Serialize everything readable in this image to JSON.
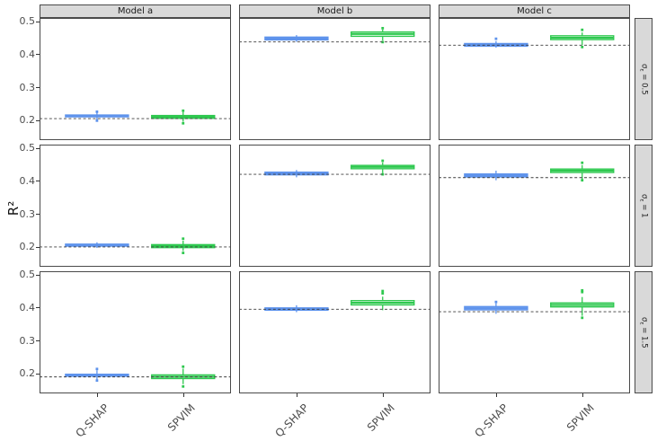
{
  "figure": {
    "ylabel": "R²"
  },
  "chart_data": {
    "type": "boxplot",
    "title": "",
    "xlabel": "",
    "ylabel": "R²",
    "facet_columns": [
      "Model a",
      "Model b",
      "Model c"
    ],
    "facet_rows": [
      {
        "label": "σ_ε = 0.5",
        "base": "σ",
        "sub": "ε",
        "rest": " = 0.5"
      },
      {
        "label": "σ_ε = 1",
        "base": "σ",
        "sub": "ε",
        "rest": " = 1"
      },
      {
        "label": "σ_ε = 1.5",
        "base": "σ",
        "sub": "ε",
        "rest": " = 1.5"
      }
    ],
    "x_categories": [
      "Q-SHAP",
      "SPVIM"
    ],
    "y_ticks": [
      0.5,
      0.4,
      0.3,
      0.2
    ],
    "ylim": [
      0.14,
      0.51
    ],
    "legend": "none",
    "grid": "off",
    "colors": {
      "qshap_stroke": "#5E93EC",
      "qshap_fill": "#A8C6F4",
      "spvim_stroke": "#2EC84F",
      "spvim_fill": "#FFFFFF",
      "ref_line": "#3C3C3C",
      "panel_border": "#4A4A4A",
      "strip_bg": "#D9D9D9",
      "axis_text": "#4D4D4D",
      "panel_bg": "#FFFFFF"
    },
    "panels": [
      {
        "row": 0,
        "col": 0,
        "ref_line": 0.205,
        "boxes": [
          {
            "method": "Q-SHAP",
            "whisker_low": 0.202,
            "q1": 0.2105,
            "median": 0.213,
            "q3": 0.216,
            "whisker_high": 0.223,
            "outliers": [
              0.199,
              0.226
            ]
          },
          {
            "method": "SPVIM",
            "whisker_low": 0.196,
            "q1": 0.206,
            "median": 0.2105,
            "q3": 0.2145,
            "whisker_high": 0.225,
            "outliers": [
              0.191,
              0.229
            ]
          }
        ]
      },
      {
        "row": 0,
        "col": 1,
        "ref_line": 0.4375,
        "boxes": [
          {
            "method": "Q-SHAP",
            "whisker_low": 0.438,
            "q1": 0.4435,
            "median": 0.4475,
            "q3": 0.452,
            "whisker_high": 0.458,
            "outliers": []
          },
          {
            "method": "SPVIM",
            "whisker_low": 0.442,
            "q1": 0.4545,
            "median": 0.4615,
            "q3": 0.4675,
            "whisker_high": 0.475,
            "outliers": [
              0.437,
              0.479
            ]
          }
        ]
      },
      {
        "row": 0,
        "col": 2,
        "ref_line": 0.4275,
        "boxes": [
          {
            "method": "Q-SHAP",
            "whisker_low": 0.42,
            "q1": 0.4245,
            "median": 0.428,
            "q3": 0.4325,
            "whisker_high": 0.44,
            "outliers": [
              0.447
            ]
          },
          {
            "method": "SPVIM",
            "whisker_low": 0.428,
            "q1": 0.4445,
            "median": 0.45,
            "q3": 0.456,
            "whisker_high": 0.466,
            "outliers": [
              0.422,
              0.474
            ]
          }
        ]
      },
      {
        "row": 1,
        "col": 0,
        "ref_line": 0.2,
        "boxes": [
          {
            "method": "Q-SHAP",
            "whisker_low": 0.197,
            "q1": 0.2025,
            "median": 0.2055,
            "q3": 0.2085,
            "whisker_high": 0.214,
            "outliers": []
          },
          {
            "method": "SPVIM",
            "whisker_low": 0.188,
            "q1": 0.198,
            "median": 0.2025,
            "q3": 0.207,
            "whisker_high": 0.219,
            "outliers": [
              0.182,
              0.225
            ]
          }
        ]
      },
      {
        "row": 1,
        "col": 1,
        "ref_line": 0.42,
        "boxes": [
          {
            "method": "Q-SHAP",
            "whisker_low": 0.411,
            "q1": 0.4185,
            "median": 0.4225,
            "q3": 0.4265,
            "whisker_high": 0.433,
            "outliers": []
          },
          {
            "method": "SPVIM",
            "whisker_low": 0.424,
            "q1": 0.437,
            "median": 0.4425,
            "q3": 0.447,
            "whisker_high": 0.456,
            "outliers": [
              0.42,
              0.461
            ]
          }
        ]
      },
      {
        "row": 1,
        "col": 2,
        "ref_line": 0.41,
        "boxes": [
          {
            "method": "Q-SHAP",
            "whisker_low": 0.402,
            "q1": 0.412,
            "median": 0.4165,
            "q3": 0.421,
            "whisker_high": 0.431,
            "outliers": []
          },
          {
            "method": "SPVIM",
            "whisker_low": 0.405,
            "q1": 0.4255,
            "median": 0.431,
            "q3": 0.436,
            "whisker_high": 0.448,
            "outliers": [
              0.402,
              0.455
            ]
          }
        ]
      },
      {
        "row": 2,
        "col": 0,
        "ref_line": 0.19,
        "boxes": [
          {
            "method": "Q-SHAP",
            "whisker_low": 0.182,
            "q1": 0.192,
            "median": 0.1955,
            "q3": 0.198,
            "whisker_high": 0.21,
            "outliers": [
              0.179,
              0.214
            ]
          },
          {
            "method": "SPVIM",
            "whisker_low": 0.168,
            "q1": 0.185,
            "median": 0.1905,
            "q3": 0.196,
            "whisker_high": 0.215,
            "outliers": [
              0.161,
              0.221
            ]
          }
        ]
      },
      {
        "row": 2,
        "col": 1,
        "ref_line": 0.395,
        "boxes": [
          {
            "method": "Q-SHAP",
            "whisker_low": 0.386,
            "q1": 0.392,
            "median": 0.3955,
            "q3": 0.399,
            "whisker_high": 0.407,
            "outliers": []
          },
          {
            "method": "SPVIM",
            "whisker_low": 0.392,
            "q1": 0.408,
            "median": 0.4145,
            "q3": 0.421,
            "whisker_high": 0.433,
            "outliers": [
              0.443,
              0.45
            ]
          }
        ]
      },
      {
        "row": 2,
        "col": 2,
        "ref_line": 0.3875,
        "boxes": [
          {
            "method": "Q-SHAP",
            "whisker_low": 0.381,
            "q1": 0.393,
            "median": 0.398,
            "q3": 0.403,
            "whisker_high": 0.413,
            "outliers": [
              0.417
            ]
          },
          {
            "method": "SPVIM",
            "whisker_low": 0.375,
            "q1": 0.402,
            "median": 0.408,
            "q3": 0.414,
            "whisker_high": 0.432,
            "outliers": [
              0.369,
              0.447,
              0.452
            ]
          }
        ]
      }
    ]
  }
}
